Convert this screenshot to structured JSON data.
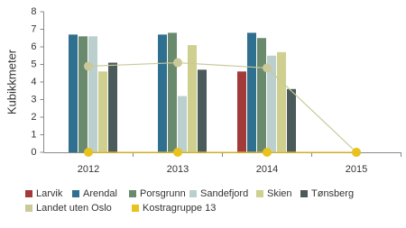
{
  "chart_data": {
    "type": "bar",
    "y_label": "Kubikkmeter",
    "categories": [
      "2012",
      "2013",
      "2014",
      "2015"
    ],
    "ylim": [
      0,
      8
    ],
    "yticks": [
      0,
      1,
      2,
      3,
      4,
      5,
      6,
      7,
      8
    ],
    "grid": false,
    "series": [
      {
        "name": "Larvik",
        "color": "#a33a3a",
        "values": [
          null,
          null,
          4.6,
          null
        ]
      },
      {
        "name": "Arendal",
        "color": "#2f6f8f",
        "values": [
          6.7,
          6.7,
          6.8,
          null
        ]
      },
      {
        "name": "Porsgrunn",
        "color": "#6a8a6e",
        "values": [
          6.6,
          6.8,
          6.5,
          null
        ]
      },
      {
        "name": "Sandefjord",
        "color": "#bccfcf",
        "values": [
          6.6,
          3.2,
          5.5,
          null
        ]
      },
      {
        "name": "Skien",
        "color": "#cfcf8f",
        "values": [
          4.6,
          6.1,
          5.7,
          null
        ]
      },
      {
        "name": "Tønsberg",
        "color": "#4b5a5b",
        "values": [
          5.1,
          4.7,
          3.6,
          null
        ]
      },
      {
        "name": "Landet uten Oslo",
        "type": "line",
        "color": "#c9c99a",
        "values": [
          4.9,
          5.1,
          4.8,
          0
        ]
      },
      {
        "name": "Kostragruppe 13",
        "type": "line",
        "color": "#e9c21c",
        "values": [
          0,
          0,
          0,
          0
        ]
      }
    ]
  }
}
